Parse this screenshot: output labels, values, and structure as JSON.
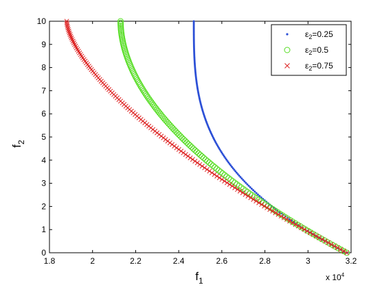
{
  "chart_data": {
    "type": "scatter",
    "xlabel_main": "f",
    "xlabel_sub": "1",
    "ylabel_main": "f",
    "ylabel_sub": "2",
    "x_multiplier_label": "x 10",
    "x_multiplier_exp": "4",
    "xlim": [
      1.8,
      3.2
    ],
    "ylim": [
      0,
      10
    ],
    "x_ticks": [
      1.8,
      2.0,
      2.2,
      2.4,
      2.6,
      2.8,
      3.0,
      3.2
    ],
    "x_tick_labels": [
      "1.8",
      "2",
      "2.2",
      "2.4",
      "2.6",
      "2.8",
      "3",
      "3.2"
    ],
    "y_ticks": [
      0,
      1,
      2,
      3,
      4,
      5,
      6,
      7,
      8,
      9,
      10
    ],
    "y_tick_labels": [
      "0",
      "1",
      "2",
      "3",
      "4",
      "5",
      "6",
      "7",
      "8",
      "9",
      "10"
    ],
    "legend_position": "top-right",
    "series": [
      {
        "name_main": "ε",
        "name_sub": "2",
        "name_rest": "=0.25",
        "marker": "dot",
        "color": "#2b4fd6",
        "x0": 2.47,
        "x1": 3.18,
        "k": 3.0,
        "points": 160
      },
      {
        "name_main": "ε",
        "name_sub": "2",
        "name_rest": "=0.5",
        "marker": "circle",
        "color": "#55dd22",
        "x0": 2.13,
        "x1": 3.18,
        "k": 1.9,
        "points": 150
      },
      {
        "name_main": "ε",
        "name_sub": "2",
        "name_rest": "=0.75",
        "marker": "x",
        "color": "#dd2222",
        "x0": 1.88,
        "x1": 3.18,
        "k": 1.55,
        "points": 140
      }
    ]
  }
}
